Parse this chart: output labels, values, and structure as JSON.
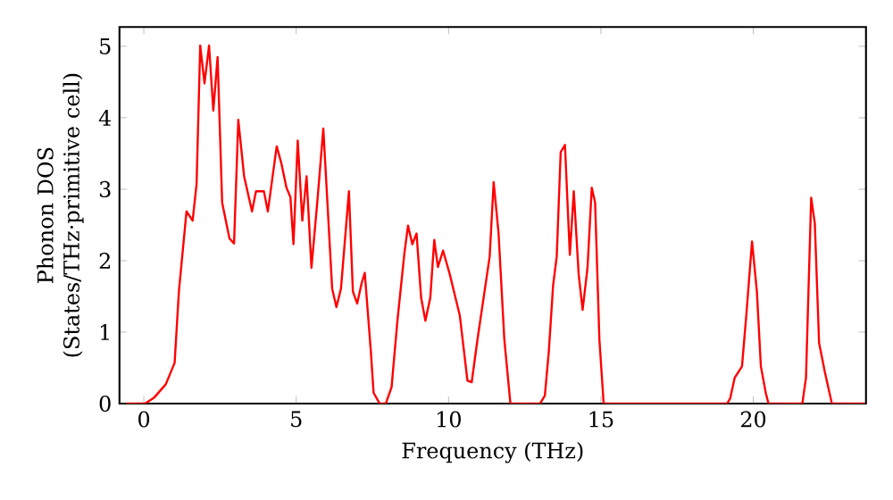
{
  "chart_data": {
    "type": "line",
    "xlabel": "Frequency (THz)",
    "ylabel": "Phonon DOS (States/THz·primitive cell)",
    "xlim": [
      -0.8,
      23.7
    ],
    "ylim": [
      0,
      5.27
    ],
    "xticks": [
      0,
      5,
      10,
      15,
      20
    ],
    "yticks": [
      0,
      1,
      2,
      3,
      4,
      5
    ],
    "series": [
      {
        "color": "#ff0000",
        "x": [
          -0.58,
          0.04,
          0.33,
          0.72,
          1.01,
          1.15,
          1.4,
          1.6,
          1.73,
          1.85,
          1.99,
          2.14,
          2.28,
          2.42,
          2.57,
          2.81,
          2.96,
          3.1,
          3.29,
          3.55,
          3.68,
          3.94,
          4.07,
          4.36,
          4.52,
          4.68,
          4.81,
          4.91,
          5.05,
          5.2,
          5.34,
          5.5,
          5.69,
          5.89,
          6.04,
          6.18,
          6.32,
          6.47,
          6.73,
          6.86,
          7.0,
          7.15,
          7.25,
          7.45,
          7.54,
          7.74,
          7.94,
          8.13,
          8.32,
          8.55,
          8.67,
          8.81,
          8.95,
          9.1,
          9.24,
          9.4,
          9.53,
          9.65,
          9.82,
          10.04,
          10.37,
          10.62,
          10.76,
          10.95,
          11.15,
          11.35,
          11.48,
          11.64,
          11.83,
          12.03,
          13.0,
          13.16,
          13.29,
          13.43,
          13.55,
          13.68,
          13.82,
          13.98,
          14.11,
          14.27,
          14.4,
          14.56,
          14.7,
          14.81,
          14.95,
          15.09,
          19.14,
          19.24,
          19.39,
          19.63,
          19.77,
          19.96,
          20.12,
          20.25,
          20.41,
          20.5,
          21.61,
          21.73,
          21.9,
          22.02,
          22.16,
          22.35,
          22.58,
          23.66
        ],
        "values": [
          0.0,
          0.0,
          0.08,
          0.27,
          0.57,
          1.57,
          2.69,
          2.56,
          3.07,
          5.01,
          4.48,
          5.01,
          4.1,
          4.85,
          2.81,
          2.31,
          2.24,
          3.97,
          3.18,
          2.69,
          2.97,
          2.97,
          2.69,
          3.6,
          3.35,
          3.02,
          2.89,
          2.23,
          3.68,
          2.56,
          3.18,
          1.9,
          2.81,
          3.85,
          2.69,
          1.61,
          1.35,
          1.61,
          2.97,
          1.57,
          1.4,
          1.69,
          1.83,
          0.73,
          0.15,
          0.0,
          0.0,
          0.23,
          1.15,
          2.1,
          2.49,
          2.23,
          2.38,
          1.48,
          1.16,
          1.48,
          2.29,
          1.91,
          2.14,
          1.81,
          1.23,
          0.32,
          0.3,
          0.9,
          1.48,
          2.06,
          3.1,
          2.39,
          0.9,
          0.0,
          0.0,
          0.11,
          0.73,
          1.65,
          2.06,
          3.52,
          3.62,
          2.08,
          2.97,
          1.81,
          1.31,
          1.9,
          3.02,
          2.81,
          0.9,
          0.0,
          0.0,
          0.07,
          0.36,
          0.52,
          1.23,
          2.27,
          1.56,
          0.52,
          0.15,
          0.0,
          0.0,
          0.36,
          2.88,
          2.52,
          0.85,
          0.44,
          0.0,
          0.0
        ]
      }
    ]
  }
}
